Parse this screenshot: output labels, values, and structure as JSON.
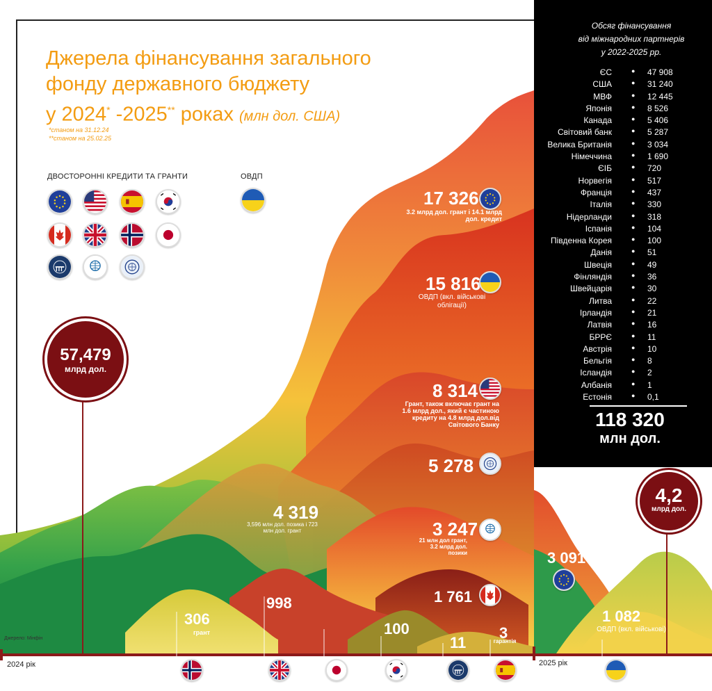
{
  "title": {
    "line1": "Джерела фінансування загального",
    "line2": "фонду державного бюджету",
    "line3_a": "у 2024",
    "sup1": "*",
    "line3_b": " -2025",
    "sup2": "**",
    "line3_c": " роках ",
    "unit": "(млн дол. США)"
  },
  "notes": {
    "n1": "*станом на 31.12.24",
    "n2": "**станом на 25.02.25"
  },
  "legend": {
    "bilateral": "ДВОСТОРОННІ КРЕДИТИ ТА ГРАНТИ",
    "ovdp": "ОВДП"
  },
  "totals": {
    "y2024_value": "57,479",
    "y2024_unit": "млрд дол.",
    "y2025_value": "4,2",
    "y2025_unit": "млрд дол."
  },
  "source": "Джерело: Мінфін",
  "years": {
    "y2024": "2024 рік",
    "y2025": "2025 рік"
  },
  "colors": {
    "accent": "#f39c12",
    "circle": "#7b0f13",
    "timeline": "#8b1a1a",
    "panel": "#000000"
  },
  "chart_data": {
    "type": "area",
    "series": [
      {
        "value": "17 326",
        "note": "3.2 млрд дол. грант і 14.1 млрд дол. кредит",
        "icon": "eu-flag-icon"
      },
      {
        "value": "15 816",
        "note": "ОВДП (вкл. військові облігації)",
        "icon": "ukraine-flag-icon"
      },
      {
        "value": "8 314",
        "note": "Грант, також включає грант на 1.6 млрд дол., який є частиною кредиту на 4.8 млрд дол.від Світового Банку",
        "icon": "usa-flag-icon"
      },
      {
        "value": "5 278",
        "note": "",
        "icon": "imf-logo-icon"
      },
      {
        "value": "4 319",
        "note": "3,596 млн дол. позика і 723 млн дол. грант",
        "icon": ""
      },
      {
        "value": "3 247",
        "note": "21 млн дол грант, 3.2 млрд дол. позики",
        "icon": "world-bank-logo-icon"
      },
      {
        "value": "1 761",
        "note": "",
        "icon": "canada-flag-icon"
      },
      {
        "value": "998",
        "note": "",
        "icon": "uk-flag-icon"
      },
      {
        "value": "306",
        "note": "грант",
        "icon": "norway-flag-icon"
      },
      {
        "value": "100",
        "note": "",
        "icon": "south-korea-flag-icon"
      },
      {
        "value": "11",
        "note": "",
        "icon": "ceb-logo-icon"
      },
      {
        "value": "3",
        "note": "гарантія",
        "icon": "spain-flag-icon"
      },
      {
        "value": "3 091",
        "note": "",
        "icon": "eu-flag-icon"
      },
      {
        "value": "1 082",
        "note": "ОВДП (вкл. військові)",
        "icon": "ukraine-flag-icon"
      }
    ]
  },
  "bottom_flags": [
    "norway-flag-icon",
    "uk-flag-icon",
    "japan-flag-icon",
    "south-korea-flag-icon",
    "ceb-logo-icon",
    "spain-flag-icon",
    "ukraine-flag-icon"
  ],
  "panel": {
    "title_l1": "Обсяг фінансування",
    "title_l2": "від міжнародних партнерів",
    "title_l3": "у 2022-2025 рр.",
    "rows": [
      {
        "c": "ЄС",
        "v": "47 908"
      },
      {
        "c": "США",
        "v": "31 240"
      },
      {
        "c": "МВФ",
        "v": "12 445"
      },
      {
        "c": "Японія",
        "v": "8 526"
      },
      {
        "c": "Канада",
        "v": "5 406"
      },
      {
        "c": "Світовий банк",
        "v": "5 287"
      },
      {
        "c": "Велика Британія",
        "v": "3 034"
      },
      {
        "c": "Німеччина",
        "v": "1 690"
      },
      {
        "c": "ЄІБ",
        "v": "720"
      },
      {
        "c": "Норвегія",
        "v": "517"
      },
      {
        "c": "Франція",
        "v": "437"
      },
      {
        "c": "Італія",
        "v": "330"
      },
      {
        "c": "Нідерланди",
        "v": "318"
      },
      {
        "c": "Іспанія",
        "v": "104"
      },
      {
        "c": "Південна Корея",
        "v": "100"
      },
      {
        "c": "Данія",
        "v": "51"
      },
      {
        "c": "Швеція",
        "v": "49"
      },
      {
        "c": "Фінляндія",
        "v": "36"
      },
      {
        "c": "Швейцарія",
        "v": "30"
      },
      {
        "c": "Литва",
        "v": "22"
      },
      {
        "c": "Ірландія",
        "v": "21"
      },
      {
        "c": "Латвія",
        "v": "16"
      },
      {
        "c": "БРРЄ",
        "v": "11"
      },
      {
        "c": "Австрія",
        "v": "10"
      },
      {
        "c": "Бельгія",
        "v": "8"
      },
      {
        "c": "Ісландія",
        "v": "2"
      },
      {
        "c": "Албанія",
        "v": "1"
      },
      {
        "c": "Естонія",
        "v": "0,1"
      }
    ],
    "total_value": "118 320",
    "total_unit": "млн дол."
  }
}
